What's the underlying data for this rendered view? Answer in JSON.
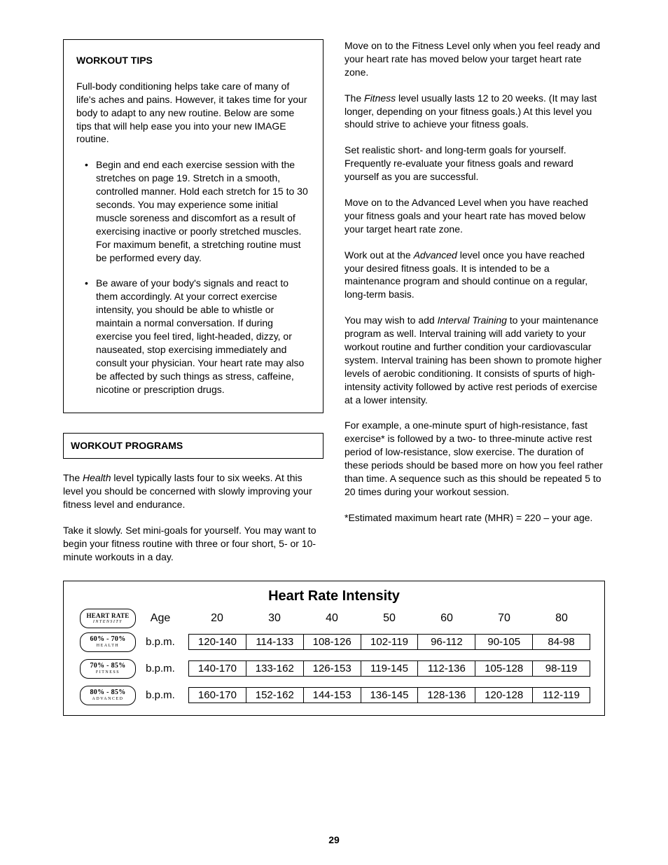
{
  "left": {
    "box1": {
      "heading": "WORKOUT TIPS",
      "intro": "Full-body conditioning helps take care of many of life's aches and pains. However, it takes time for your body to adapt to any new routine. Below are some tips that will help ease you into your new IMAGE routine.",
      "bullets": [
        "Begin and end each exercise session with the stretches on page 19. Stretch in a smooth, controlled manner. Hold each stretch for 15 to 30 seconds. You may experience some initial muscle soreness and discomfort as a result of exercising inactive or poorly stretched muscles. For maximum benefit, a stretching routine must be performed every day.",
        "Be aware of your body's signals and react to them accordingly. At your correct exercise intensity, you should be able to whistle or maintain a normal conversation. If during exercise you feel tired, light-headed, dizzy, or nauseated, stop exercising immediately and consult your physician. Your heart rate may also be affected by such things as stress, caffeine, nicotine or prescription drugs."
      ]
    },
    "heading2": "WORKOUT PROGRAMS",
    "p1a": "The ",
    "p1_em": "Health",
    "p1b": " level typically lasts four to six weeks. At this level you should be concerned with slowly improving your fitness level and endurance.",
    "p2": "Take it slowly. Set mini-goals for yourself. You may want to begin your fitness routine with three or four short, 5- or 10-minute workouts in a day."
  },
  "right": {
    "p1": "Move on to the Fitness Level only when you feel ready and your heart rate has moved below your target heart rate zone.",
    "p2a": "The ",
    "p2_em": "Fitness",
    "p2b": " level usually lasts 12 to 20 weeks. (It may last longer, depending on your fitness goals.) At this level you should strive to achieve your fitness goals.",
    "p3": "Set realistic short- and long-term goals for yourself. Frequently re-evaluate your fitness goals and reward yourself as you are successful.",
    "p4": "Move on to the Advanced Level when you have reached your fitness goals and your heart rate has moved below your target heart rate zone.",
    "p5a": "Work out at the ",
    "p5_em": "Advanced",
    "p5b": " level once you have reached your desired fitness goals. It is intended to be a maintenance program and should continue on a regular, long-term basis.",
    "p6a": "You may wish to add ",
    "p6_em": "Interval Training",
    "p6b": " to your maintenance program as well. Interval training will add variety to your workout routine and further condition your cardiovascular system. Interval training has been shown to promote higher levels of aerobic conditioning. It consists of spurts of high-intensity activity followed by active rest periods of exercise at a lower intensity.",
    "p7": "For example, a one-minute spurt of high-resistance, fast exercise* is followed by a two- to three-minute active rest period of low-resistance, slow exercise. The duration of these periods should be based more on how you feel rather than time. A sequence such as this should be repeated 5 to 20 times during your workout session.",
    "p8": "*Estimated maximum heart rate (MHR) = 220 – your age."
  },
  "table": {
    "title": "Heart Rate Intensity",
    "header_badge_top": "HEART RATE",
    "header_badge_bot": "INTENSITY",
    "age_label": "Age",
    "bpm_label": "b.p.m.",
    "ages": [
      "20",
      "30",
      "40",
      "50",
      "60",
      "70",
      "80"
    ],
    "rows": [
      {
        "badge_top": "60% - 70%",
        "badge_bot": "HEALTH",
        "cells": [
          "120-140",
          "114-133",
          "108-126",
          "102-119",
          "96-112",
          "90-105",
          "84-98"
        ]
      },
      {
        "badge_top": "70% - 85%",
        "badge_bot": "FITNESS",
        "cells": [
          "140-170",
          "133-162",
          "126-153",
          "119-145",
          "112-136",
          "105-128",
          "98-119"
        ]
      },
      {
        "badge_top": "80% - 85%",
        "badge_bot": "ADVANCED",
        "cells": [
          "160-170",
          "152-162",
          "144-153",
          "136-145",
          "128-136",
          "120-128",
          "112-119"
        ]
      }
    ]
  },
  "page_number": "29"
}
